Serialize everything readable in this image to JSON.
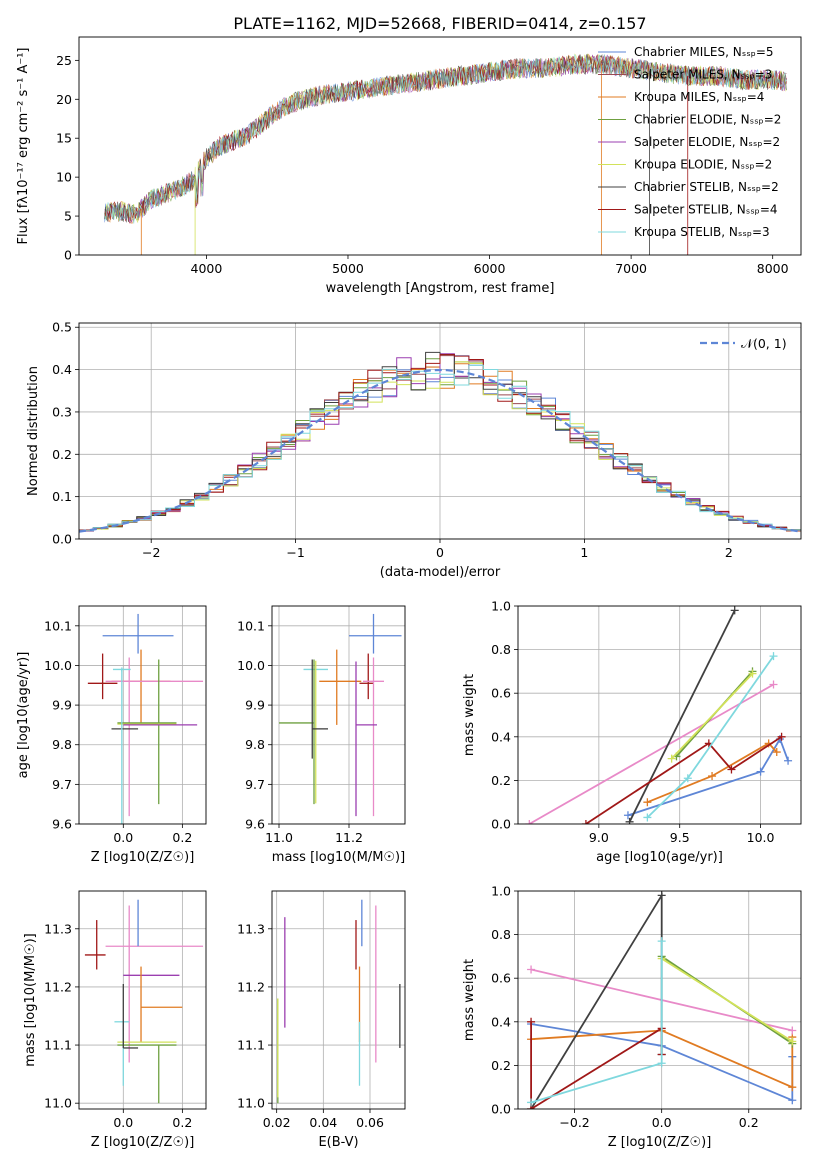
{
  "figure_title": "PLATE=1162, MJD=52668, FIBERID=0414, z=0.157",
  "chart_data": [
    {
      "type": "line",
      "panel": "spectrum",
      "xlabel": "wavelength [Angstrom, rest frame]",
      "ylabel": "Flux [fλ10⁻¹⁷ erg cm⁻² s⁻¹ A⁻¹]",
      "xlim": [
        3100,
        8200
      ],
      "ylim": [
        0,
        28
      ],
      "xticks": [
        4000,
        5000,
        6000,
        7000,
        8000
      ],
      "yticks": [
        0,
        5,
        10,
        15,
        20,
        25
      ],
      "legend_position": "top-right",
      "continuum": {
        "x": [
          3280,
          3400,
          3500,
          3600,
          3700,
          3800,
          3900,
          4000,
          4100,
          4200,
          4300,
          4400,
          4500,
          4600,
          4800,
          5000,
          5200,
          5400,
          5600,
          5800,
          6000,
          6200,
          6400,
          6600,
          6800,
          7000,
          7200,
          7400,
          7600,
          7800,
          8000,
          8100
        ],
        "y": [
          5.5,
          5.6,
          5.2,
          7.0,
          7.8,
          8.5,
          9.5,
          12.5,
          14.0,
          14.8,
          15.5,
          17.0,
          18.5,
          19.5,
          20.5,
          21.0,
          21.5,
          22.0,
          22.5,
          23.0,
          23.5,
          24.0,
          24.0,
          24.5,
          24.5,
          24.0,
          23.5,
          23.0,
          23.0,
          22.5,
          22.5,
          22.3
        ]
      },
      "series": [
        {
          "name": "Chabrier MILES, N_SSP=5",
          "color": "#5e86d6"
        },
        {
          "name": "Salpeter MILES, N_SSP=3",
          "color": "#9a4a52"
        },
        {
          "name": "Kroupa MILES, N_SSP=4",
          "color": "#e07b22"
        },
        {
          "name": "Chabrier ELODIE, N_SSP=2",
          "color": "#6fa040"
        },
        {
          "name": "Salpeter ELODIE, N_SSP=2",
          "color": "#9b3fb0"
        },
        {
          "name": "Kroupa ELODIE, N_SSP=2",
          "color": "#d2e25a"
        },
        {
          "name": "Chabrier STELIB, N_SSP=2",
          "color": "#404040"
        },
        {
          "name": "Salpeter STELIB, N_SSP=4",
          "color": "#a01818"
        },
        {
          "name": "Kroupa STELIB, N_SSP=3",
          "color": "#7fd8de"
        }
      ]
    },
    {
      "type": "bar",
      "panel": "residual histogram",
      "xlabel": "(data-model)/error",
      "ylabel": "Normed distribution",
      "xlim": [
        -2.5,
        2.5
      ],
      "ylim": [
        0,
        0.51
      ],
      "xticks": [
        -2,
        -1,
        0,
        1,
        2
      ],
      "yticks": [
        0.0,
        0.1,
        0.2,
        0.3,
        0.4,
        0.5
      ],
      "grid": true,
      "legend_position": "top-right",
      "reference_curve": {
        "name": "N(0,1)",
        "mean": 0,
        "sigma": 1,
        "color": "#5e86d6",
        "dashed": true
      },
      "bin_width": 0.1
    },
    {
      "type": "scatter",
      "panel": "age vs Z",
      "xlabel": "Z [log10(Z/Z☉)]",
      "ylabel": "age [log10(age/yr)]",
      "xlim": [
        -0.15,
        0.28
      ],
      "ylim": [
        9.6,
        10.15
      ],
      "xticks": [
        0.0,
        0.2
      ],
      "yticks": [
        9.6,
        9.7,
        9.8,
        9.9,
        10.0,
        10.1
      ],
      "grid": true,
      "points": [
        {
          "color": "#5e86d6",
          "x": 0.05,
          "xerr": [
            0.12,
            0.12
          ],
          "y": 10.075,
          "yerr": [
            0.045,
            0.055
          ]
        },
        {
          "color": "#e07b22",
          "x": 0.06,
          "xerr": [
            0.1,
            0.1
          ],
          "y": 9.96,
          "yerr": [
            0.11,
            0.08
          ]
        },
        {
          "color": "#a01818",
          "x": -0.07,
          "xerr": [
            0.05,
            0.05
          ],
          "y": 9.955,
          "yerr": [
            0.04,
            0.075
          ]
        },
        {
          "color": "#e88ac8",
          "x": 0.2,
          "xerr": [
            0.26,
            0.07
          ],
          "y": 9.96,
          "yerr": [
            0.0,
            0.0
          ]
        },
        {
          "color": "#e88ac8",
          "x": 0.02,
          "xerr": [
            0.0,
            0.0
          ],
          "y": 9.96,
          "yerr": [
            0.34,
            0.06
          ]
        },
        {
          "color": "#6fa040",
          "x": 0.12,
          "xerr": [
            0.14,
            0.06
          ],
          "y": 9.855,
          "yerr": [
            0.205,
            0.16
          ]
        },
        {
          "color": "#d2e25a",
          "x": 0.12,
          "xerr": [
            0.14,
            0.06
          ],
          "y": 9.852,
          "yerr": [
            0.0,
            0.0
          ]
        },
        {
          "color": "#9b3fb0",
          "x": 0.15,
          "xerr": [
            0.15,
            0.1
          ],
          "y": 9.85,
          "yerr": [
            0.0,
            0.0
          ]
        },
        {
          "color": "#404040",
          "x": 0.0,
          "xerr": [
            0.04,
            0.05
          ],
          "y": 9.84,
          "yerr": [
            0.0,
            0.0
          ]
        },
        {
          "color": "#7fd8de",
          "x": -0.005,
          "xerr": [
            0.03,
            0.03
          ],
          "y": 9.99,
          "yerr": [
            0.005,
            0.005
          ]
        },
        {
          "color": "#7fd8de",
          "x": -0.005,
          "xerr": [
            0.0,
            0.0
          ],
          "y": 9.75,
          "yerr": [
            0.17,
            0.24
          ]
        }
      ]
    },
    {
      "type": "scatter",
      "panel": "age vs mass",
      "xlabel": "mass [log10(M/M☉)]",
      "ylabel": "",
      "xlim": [
        10.98,
        11.36
      ],
      "ylim": [
        9.6,
        10.15
      ],
      "xticks": [
        11.0,
        11.2
      ],
      "yticks": [
        9.6,
        9.7,
        9.8,
        9.9,
        10.0,
        10.1
      ],
      "grid": true,
      "points": [
        {
          "color": "#5e86d6",
          "x": 11.27,
          "xerr": [
            0.07,
            0.08
          ],
          "y": 10.075,
          "yerr": [
            0.045,
            0.055
          ]
        },
        {
          "color": "#7fd8de",
          "x": 11.14,
          "xerr": [
            0.07,
            0.0
          ],
          "y": 9.99,
          "yerr": [
            0.0,
            0.0
          ]
        },
        {
          "color": "#e07b22",
          "x": 11.165,
          "xerr": [
            0.05,
            0.07
          ],
          "y": 9.96,
          "yerr": [
            0.11,
            0.08
          ]
        },
        {
          "color": "#a01818",
          "x": 11.255,
          "xerr": [
            0.025,
            0.015
          ],
          "y": 9.955,
          "yerr": [
            0.04,
            0.075
          ]
        },
        {
          "color": "#e88ac8",
          "x": 11.27,
          "xerr": [
            0.03,
            0.03
          ],
          "y": 9.96,
          "yerr": [
            0.34,
            0.06
          ]
        },
        {
          "color": "#6fa040",
          "x": 11.1,
          "xerr": [
            0.1,
            0.0
          ],
          "y": 9.855,
          "yerr": [
            0.205,
            0.16
          ]
        },
        {
          "color": "#d2e25a",
          "x": 11.105,
          "xerr": [
            0.0,
            0.0
          ],
          "y": 9.852,
          "yerr": [
            0.2,
            0.16
          ]
        },
        {
          "color": "#9b3fb0",
          "x": 11.22,
          "xerr": [
            0.0,
            0.06
          ],
          "y": 9.85,
          "yerr": [
            0.23,
            0.16
          ]
        },
        {
          "color": "#404040",
          "x": 11.095,
          "xerr": [
            0.0,
            0.045
          ],
          "y": 9.84,
          "yerr": [
            0.075,
            0.175
          ]
        }
      ]
    },
    {
      "type": "line",
      "panel": "mass weight vs age",
      "xlabel": "age [log10(age/yr)]",
      "ylabel": "mass weight",
      "xlim": [
        8.5,
        10.25
      ],
      "ylim": [
        0,
        1
      ],
      "xticks": [
        9.0,
        9.5,
        10.0
      ],
      "yticks": [
        0.0,
        0.2,
        0.4,
        0.6,
        0.8,
        1.0
      ],
      "grid": true,
      "series": [
        {
          "color": "#5e86d6",
          "x": [
            9.18,
            10.0,
            10.12,
            10.17
          ],
          "y": [
            0.04,
            0.24,
            0.39,
            0.29
          ]
        },
        {
          "color": "#e07b22",
          "x": [
            9.3,
            9.7,
            10.05,
            10.1
          ],
          "y": [
            0.1,
            0.22,
            0.37,
            0.33
          ]
        },
        {
          "color": "#e88ac8",
          "x": [
            8.57,
            10.08
          ],
          "y": [
            0.0,
            0.64
          ]
        },
        {
          "color": "#6fa040",
          "x": [
            9.48,
            9.95
          ],
          "y": [
            0.31,
            0.7
          ]
        },
        {
          "color": "#d2e25a",
          "x": [
            9.45,
            9.95
          ],
          "y": [
            0.3,
            0.69
          ]
        },
        {
          "color": "#404040",
          "x": [
            9.19,
            9.84
          ],
          "y": [
            0.01,
            0.98
          ]
        },
        {
          "color": "#a01818",
          "x": [
            8.92,
            9.68,
            9.82,
            10.13
          ],
          "y": [
            0.0,
            0.37,
            0.25,
            0.4
          ]
        },
        {
          "color": "#7fd8de",
          "x": [
            9.3,
            9.55,
            10.08
          ],
          "y": [
            0.03,
            0.21,
            0.77
          ]
        }
      ]
    },
    {
      "type": "scatter",
      "panel": "mass vs Z",
      "xlabel": "Z [log10(Z/Z☉)]",
      "ylabel": "mass [log10(M/M☉)]",
      "xlim": [
        -0.15,
        0.28
      ],
      "ylim": [
        10.99,
        11.365
      ],
      "xticks": [
        0.0,
        0.2
      ],
      "yticks": [
        11.0,
        11.1,
        11.2,
        11.3
      ],
      "grid": true,
      "points": [
        {
          "color": "#a01818",
          "x": -0.09,
          "xerr": [
            0.04,
            0.03
          ],
          "y": 11.255,
          "yerr": [
            0.025,
            0.06
          ]
        },
        {
          "color": "#e88ac8",
          "x": 0.27,
          "xerr": [
            0.33,
            0.0
          ],
          "y": 11.27,
          "yerr": [
            0.0,
            0.0
          ]
        },
        {
          "color": "#e88ac8",
          "x": 0.02,
          "xerr": [
            0.0,
            0.0
          ],
          "y": 11.27,
          "yerr": [
            0.2,
            0.07
          ]
        },
        {
          "color": "#5e86d6",
          "x": 0.05,
          "xerr": [
            0.0,
            0.0
          ],
          "y": 11.27,
          "yerr": [
            0.0,
            0.08
          ]
        },
        {
          "color": "#9b3fb0",
          "x": 0.15,
          "xerr": [
            0.15,
            0.04
          ],
          "y": 11.22,
          "yerr": [
            0.0,
            0.0
          ]
        },
        {
          "color": "#e07b22",
          "x": 0.06,
          "xerr": [
            0.0,
            0.14
          ],
          "y": 11.165,
          "yerr": [
            0.06,
            0.07
          ]
        },
        {
          "color": "#7fd8de",
          "x": 0.0,
          "xerr": [
            0.03,
            0.02
          ],
          "y": 11.14,
          "yerr": [
            0.11,
            0.0
          ]
        },
        {
          "color": "#6fa040",
          "x": 0.12,
          "xerr": [
            0.14,
            0.06
          ],
          "y": 11.1,
          "yerr": [
            0.1,
            0.0
          ]
        },
        {
          "color": "#d2e25a",
          "x": 0.12,
          "xerr": [
            0.14,
            0.06
          ],
          "y": 11.105,
          "yerr": [
            0.0,
            0.0
          ]
        },
        {
          "color": "#404040",
          "x": 0.0,
          "xerr": [
            0.0,
            0.05
          ],
          "y": 11.095,
          "yerr": [
            0.0,
            0.11
          ]
        }
      ]
    },
    {
      "type": "scatter",
      "panel": "mass vs E(B-V)",
      "xlabel": "E(B-V)",
      "ylabel": "",
      "xlim": [
        0.018,
        0.075
      ],
      "ylim": [
        10.99,
        11.365
      ],
      "xticks": [
        0.02,
        0.04,
        0.06
      ],
      "yticks": [
        11.0,
        11.1,
        11.2,
        11.3
      ],
      "grid": true,
      "points": [
        {
          "color": "#6fa040",
          "x": 0.0205,
          "y": 11.1,
          "yerr": [
            0.1,
            0.08
          ]
        },
        {
          "color": "#d2e25a",
          "x": 0.0205,
          "y": 11.1,
          "yerr": [
            0.09,
            0.08
          ]
        },
        {
          "color": "#9b3fb0",
          "x": 0.0235,
          "y": 11.22,
          "yerr": [
            0.09,
            0.1
          ]
        },
        {
          "color": "#a01818",
          "x": 0.054,
          "y": 11.255,
          "yerr": [
            0.025,
            0.06
          ]
        },
        {
          "color": "#e07b22",
          "x": 0.0555,
          "y": 11.165,
          "yerr": [
            0.06,
            0.07
          ]
        },
        {
          "color": "#7fd8de",
          "x": 0.0555,
          "y": 11.14,
          "yerr": [
            0.11,
            0.0
          ]
        },
        {
          "color": "#5e86d6",
          "x": 0.0565,
          "y": 11.27,
          "yerr": [
            0.0,
            0.08
          ]
        },
        {
          "color": "#e88ac8",
          "x": 0.0625,
          "y": 11.27,
          "yerr": [
            0.2,
            0.07
          ]
        },
        {
          "color": "#404040",
          "x": 0.0728,
          "y": 11.095,
          "yerr": [
            0.0,
            0.11
          ]
        }
      ]
    },
    {
      "type": "line",
      "panel": "mass weight vs Z",
      "xlabel": "Z [log10(Z/Z☉)]",
      "ylabel": "mass weight",
      "xlim": [
        -0.33,
        0.32
      ],
      "ylim": [
        0,
        1
      ],
      "xticks": [
        -0.2,
        0.0,
        0.2
      ],
      "yticks": [
        0.0,
        0.2,
        0.4,
        0.6,
        0.8,
        1.0
      ],
      "grid": true,
      "series": [
        {
          "color": "#5e86d6",
          "x": [
            -0.3,
            0.0,
            0.3,
            0.3
          ],
          "y": [
            0.39,
            0.29,
            0.04,
            0.24
          ]
        },
        {
          "color": "#e07b22",
          "x": [
            -0.3,
            0.0,
            0.3,
            0.3
          ],
          "y": [
            0.32,
            0.36,
            0.1,
            0.33
          ]
        },
        {
          "color": "#e88ac8",
          "x": [
            -0.3,
            0.3
          ],
          "y": [
            0.64,
            0.36
          ]
        },
        {
          "color": "#6fa040",
          "x": [
            0.0,
            0.3
          ],
          "y": [
            0.7,
            0.3
          ]
        },
        {
          "color": "#d2e25a",
          "x": [
            0.0,
            0.3
          ],
          "y": [
            0.69,
            0.31
          ]
        },
        {
          "color": "#404040",
          "x": [
            -0.3,
            0.0,
            0.0
          ],
          "y": [
            0.0,
            0.98,
            0.25
          ]
        },
        {
          "color": "#a01818",
          "x": [
            -0.3,
            -0.3,
            0.0,
            0.0
          ],
          "y": [
            0.4,
            0.0,
            0.37,
            0.25
          ]
        },
        {
          "color": "#7fd8de",
          "x": [
            -0.3,
            0.0,
            0.0
          ],
          "y": [
            0.03,
            0.21,
            0.77
          ]
        }
      ]
    }
  ]
}
